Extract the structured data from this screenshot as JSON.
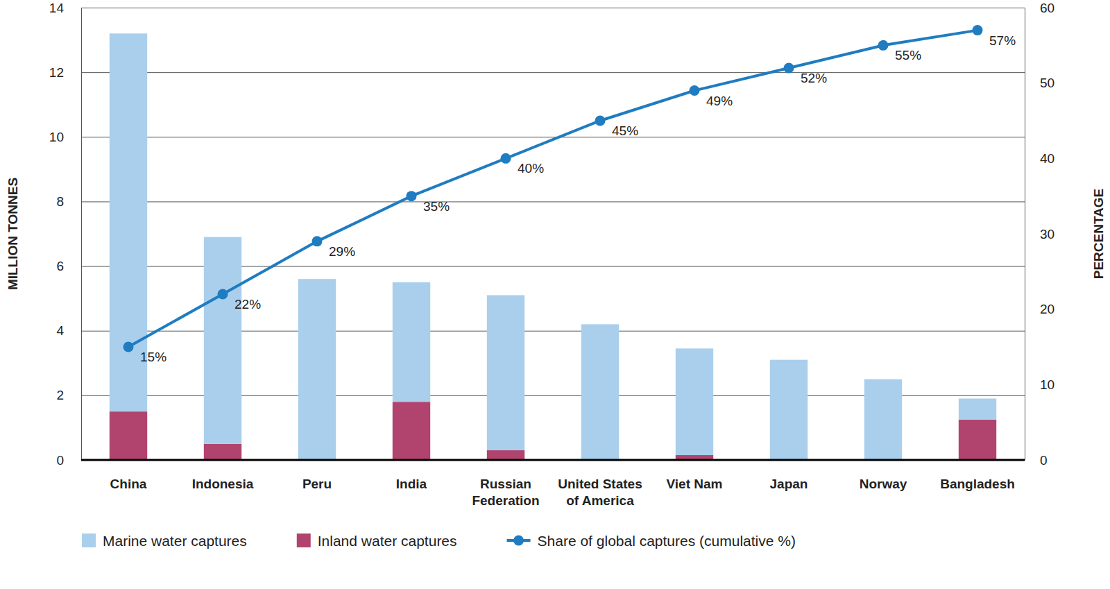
{
  "chart_data": {
    "type": "bar",
    "stacked": true,
    "grid": true,
    "legend": "bottom",
    "y_label": "MILLION TONNES",
    "y2_label": "PERCENTAGE",
    "categories": [
      "China",
      "Indonesia",
      "Peru",
      "India",
      "Russian Federation",
      "United States of America",
      "Viet Nam",
      "Japan",
      "Norway",
      "Bangladesh"
    ],
    "ylim": [
      0,
      14
    ],
    "yticks": [
      0,
      2,
      4,
      6,
      8,
      10,
      12,
      14
    ],
    "y2lim": [
      0,
      60
    ],
    "y2ticks": [
      0,
      10,
      20,
      30,
      40,
      50,
      60
    ],
    "series": [
      {
        "name": "Marine water captures",
        "type": "bar",
        "color": "#a9cfec",
        "values": [
          11.7,
          6.4,
          5.6,
          3.7,
          4.8,
          4.2,
          3.3,
          3.1,
          2.5,
          0.65
        ]
      },
      {
        "name": "Inland water captures",
        "type": "bar",
        "color": "#b0446f",
        "values": [
          1.5,
          0.5,
          0,
          1.8,
          0.3,
          0,
          0.15,
          0,
          0,
          1.25
        ]
      },
      {
        "name": "Share of global captures (cumulative %)",
        "type": "line",
        "axis": "y2",
        "color": "#1f7cc1",
        "marker": "circle",
        "data_labels": true,
        "values": [
          15,
          22,
          29,
          35,
          40,
          45,
          49,
          52,
          55,
          57
        ],
        "value_labels": [
          "15%",
          "22%",
          "29%",
          "35%",
          "40%",
          "45%",
          "49%",
          "52%",
          "55%",
          "57%"
        ]
      }
    ]
  }
}
